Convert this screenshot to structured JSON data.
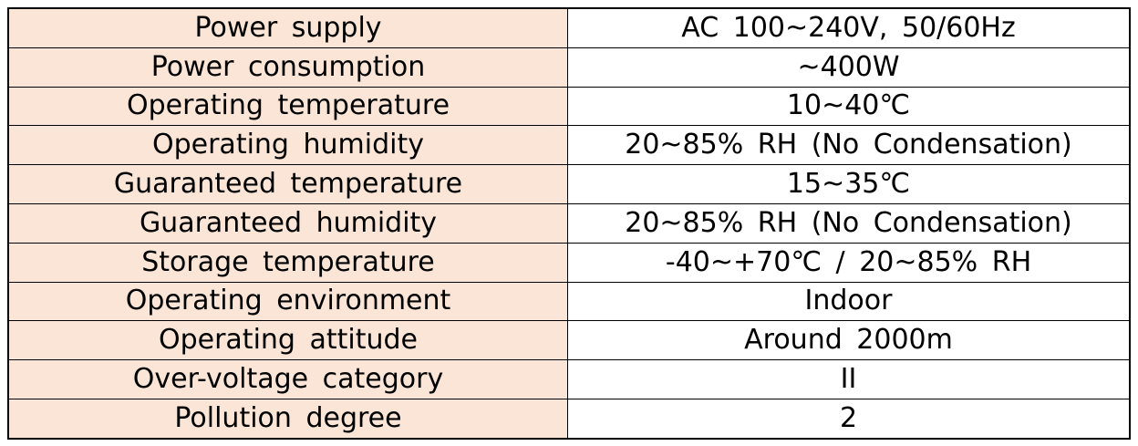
{
  "spec_table": {
    "rows": [
      {
        "label": "Power supply",
        "value": "AC 100~240V, 50/60Hz"
      },
      {
        "label": "Power consumption",
        "value": "~400W"
      },
      {
        "label": "Operating temperature",
        "value": "10~40℃"
      },
      {
        "label": "Operating humidity",
        "value": "20~85% RH (No Condensation)"
      },
      {
        "label": "Guaranteed temperature",
        "value": "15~35℃"
      },
      {
        "label": "Guaranteed humidity",
        "value": "20~85% RH (No Condensation)"
      },
      {
        "label": "Storage temperature",
        "value": "-40~+70℃ / 20~85% RH"
      },
      {
        "label": "Operating environment",
        "value": "Indoor"
      },
      {
        "label": "Operating attitude",
        "value": "Around 2000m"
      },
      {
        "label": "Over-voltage category",
        "value": "II"
      },
      {
        "label": "Pollution degree",
        "value": "2"
      }
    ]
  },
  "colors": {
    "label_background": "#fbe5d6",
    "value_background": "#ffffff",
    "border": "#000000",
    "text": "#000000"
  }
}
